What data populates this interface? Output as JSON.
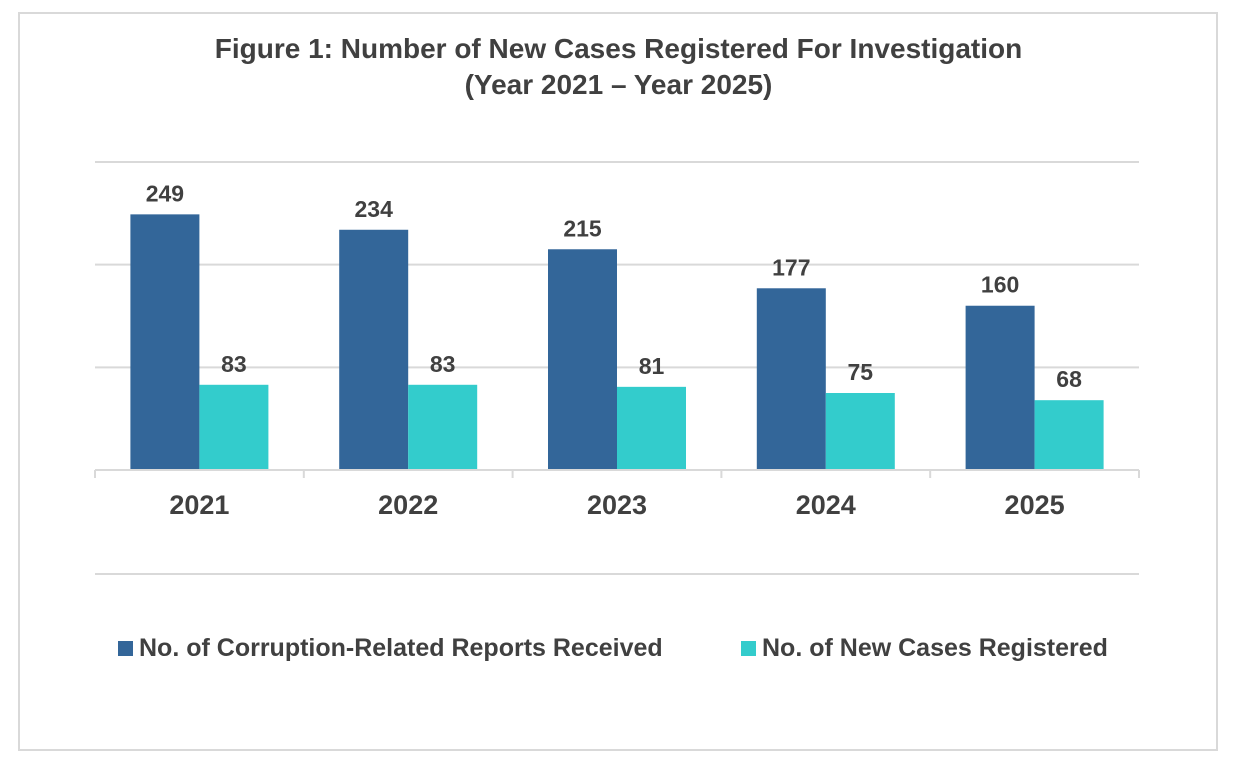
{
  "chart_data": {
    "type": "bar",
    "title": "Figure 1: Number of New Cases Registered For Investigation",
    "subtitle": "(Year 2021 – Year 2025)",
    "categories": [
      "2021",
      "2022",
      "2023",
      "2024",
      "2025"
    ],
    "series": [
      {
        "name": "No. of Corruption-Related Reports Received",
        "values": [
          249,
          234,
          215,
          177,
          160
        ],
        "color": "#336699"
      },
      {
        "name": "No. of New Cases Registered",
        "values": [
          83,
          83,
          81,
          75,
          68
        ],
        "color": "#33CCCC"
      }
    ],
    "ylim": [
      0,
      300
    ],
    "yticks_visible": false,
    "grid": true,
    "legend_position": "bottom"
  }
}
